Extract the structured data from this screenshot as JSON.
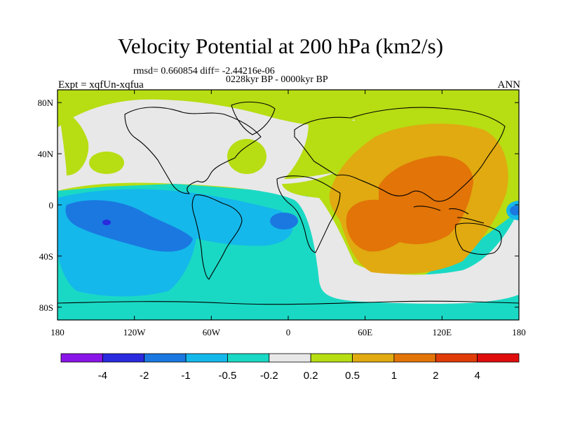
{
  "chart_data": {
    "type": "heatmap",
    "title": "Velocity Potential at 200 hPa (km2/s)",
    "stats_text": "rmsd= 0.660854 diff= -2.44216e-06",
    "period_text": "0228kyr BP - 0000kyr BP",
    "experiment_text": "Expt = xqfUn-xqfua",
    "season_text": "ANN",
    "x_axis": {
      "range": [
        -180,
        180
      ],
      "ticks": [
        -180,
        -120,
        -60,
        0,
        60,
        120,
        180
      ],
      "tick_labels": [
        "180",
        "120W",
        "60W",
        "0",
        "60E",
        "120E",
        "180"
      ]
    },
    "y_axis": {
      "range": [
        -90,
        90
      ],
      "ticks": [
        80,
        40,
        0,
        -40,
        -80
      ],
      "tick_labels": [
        "80N",
        "40N",
        "0",
        "40S",
        "80S"
      ]
    },
    "colorbar": {
      "levels": [
        "-4",
        "-2",
        "-1",
        "-0.5",
        "-0.2",
        "0.2",
        "0.5",
        "1",
        "2",
        "4"
      ],
      "colors": [
        "#8a15e8",
        "#2a2adf",
        "#1a78e0",
        "#15b8ea",
        "#1ad9c4",
        "#e8e8e8",
        "#b7dd13",
        "#e0aa10",
        "#e27408",
        "#e03c07",
        "#e00d0d"
      ]
    },
    "regions": [
      {
        "name": "arctic-positive",
        "value_band": "0.2 to 0.5",
        "color": "#b7dd13"
      },
      {
        "name": "northern-neutral",
        "value_band": "-0.2 to 0.2",
        "color": "#e8e8e8"
      },
      {
        "name": "north-pacific-positive",
        "value_band": "0.2 to 0.5",
        "color": "#b7dd13"
      },
      {
        "name": "north-atlantic-positive",
        "value_band": "0.2 to 0.5",
        "color": "#b7dd13"
      },
      {
        "name": "southern-ocean-low",
        "value_band": "-0.5 to -0.2",
        "color": "#1ad9c4"
      },
      {
        "name": "pacific-minimum",
        "value_band": "-1 to -0.5",
        "color": "#15b8ea"
      },
      {
        "name": "pacific-core",
        "value_band": "-2 to -1",
        "color": "#1a78e0"
      },
      {
        "name": "pacific-extreme",
        "value_band": "-4 to -2",
        "color": "#2a2adf"
      },
      {
        "name": "atlantic-core",
        "value_band": "-2 to -1",
        "color": "#1a78e0"
      },
      {
        "name": "indo-pacific-maximum",
        "value_band": "0.5 to 1",
        "color": "#e0aa10"
      },
      {
        "name": "indo-pacific-core",
        "value_band": "1 to 2",
        "color": "#e27408"
      }
    ]
  }
}
